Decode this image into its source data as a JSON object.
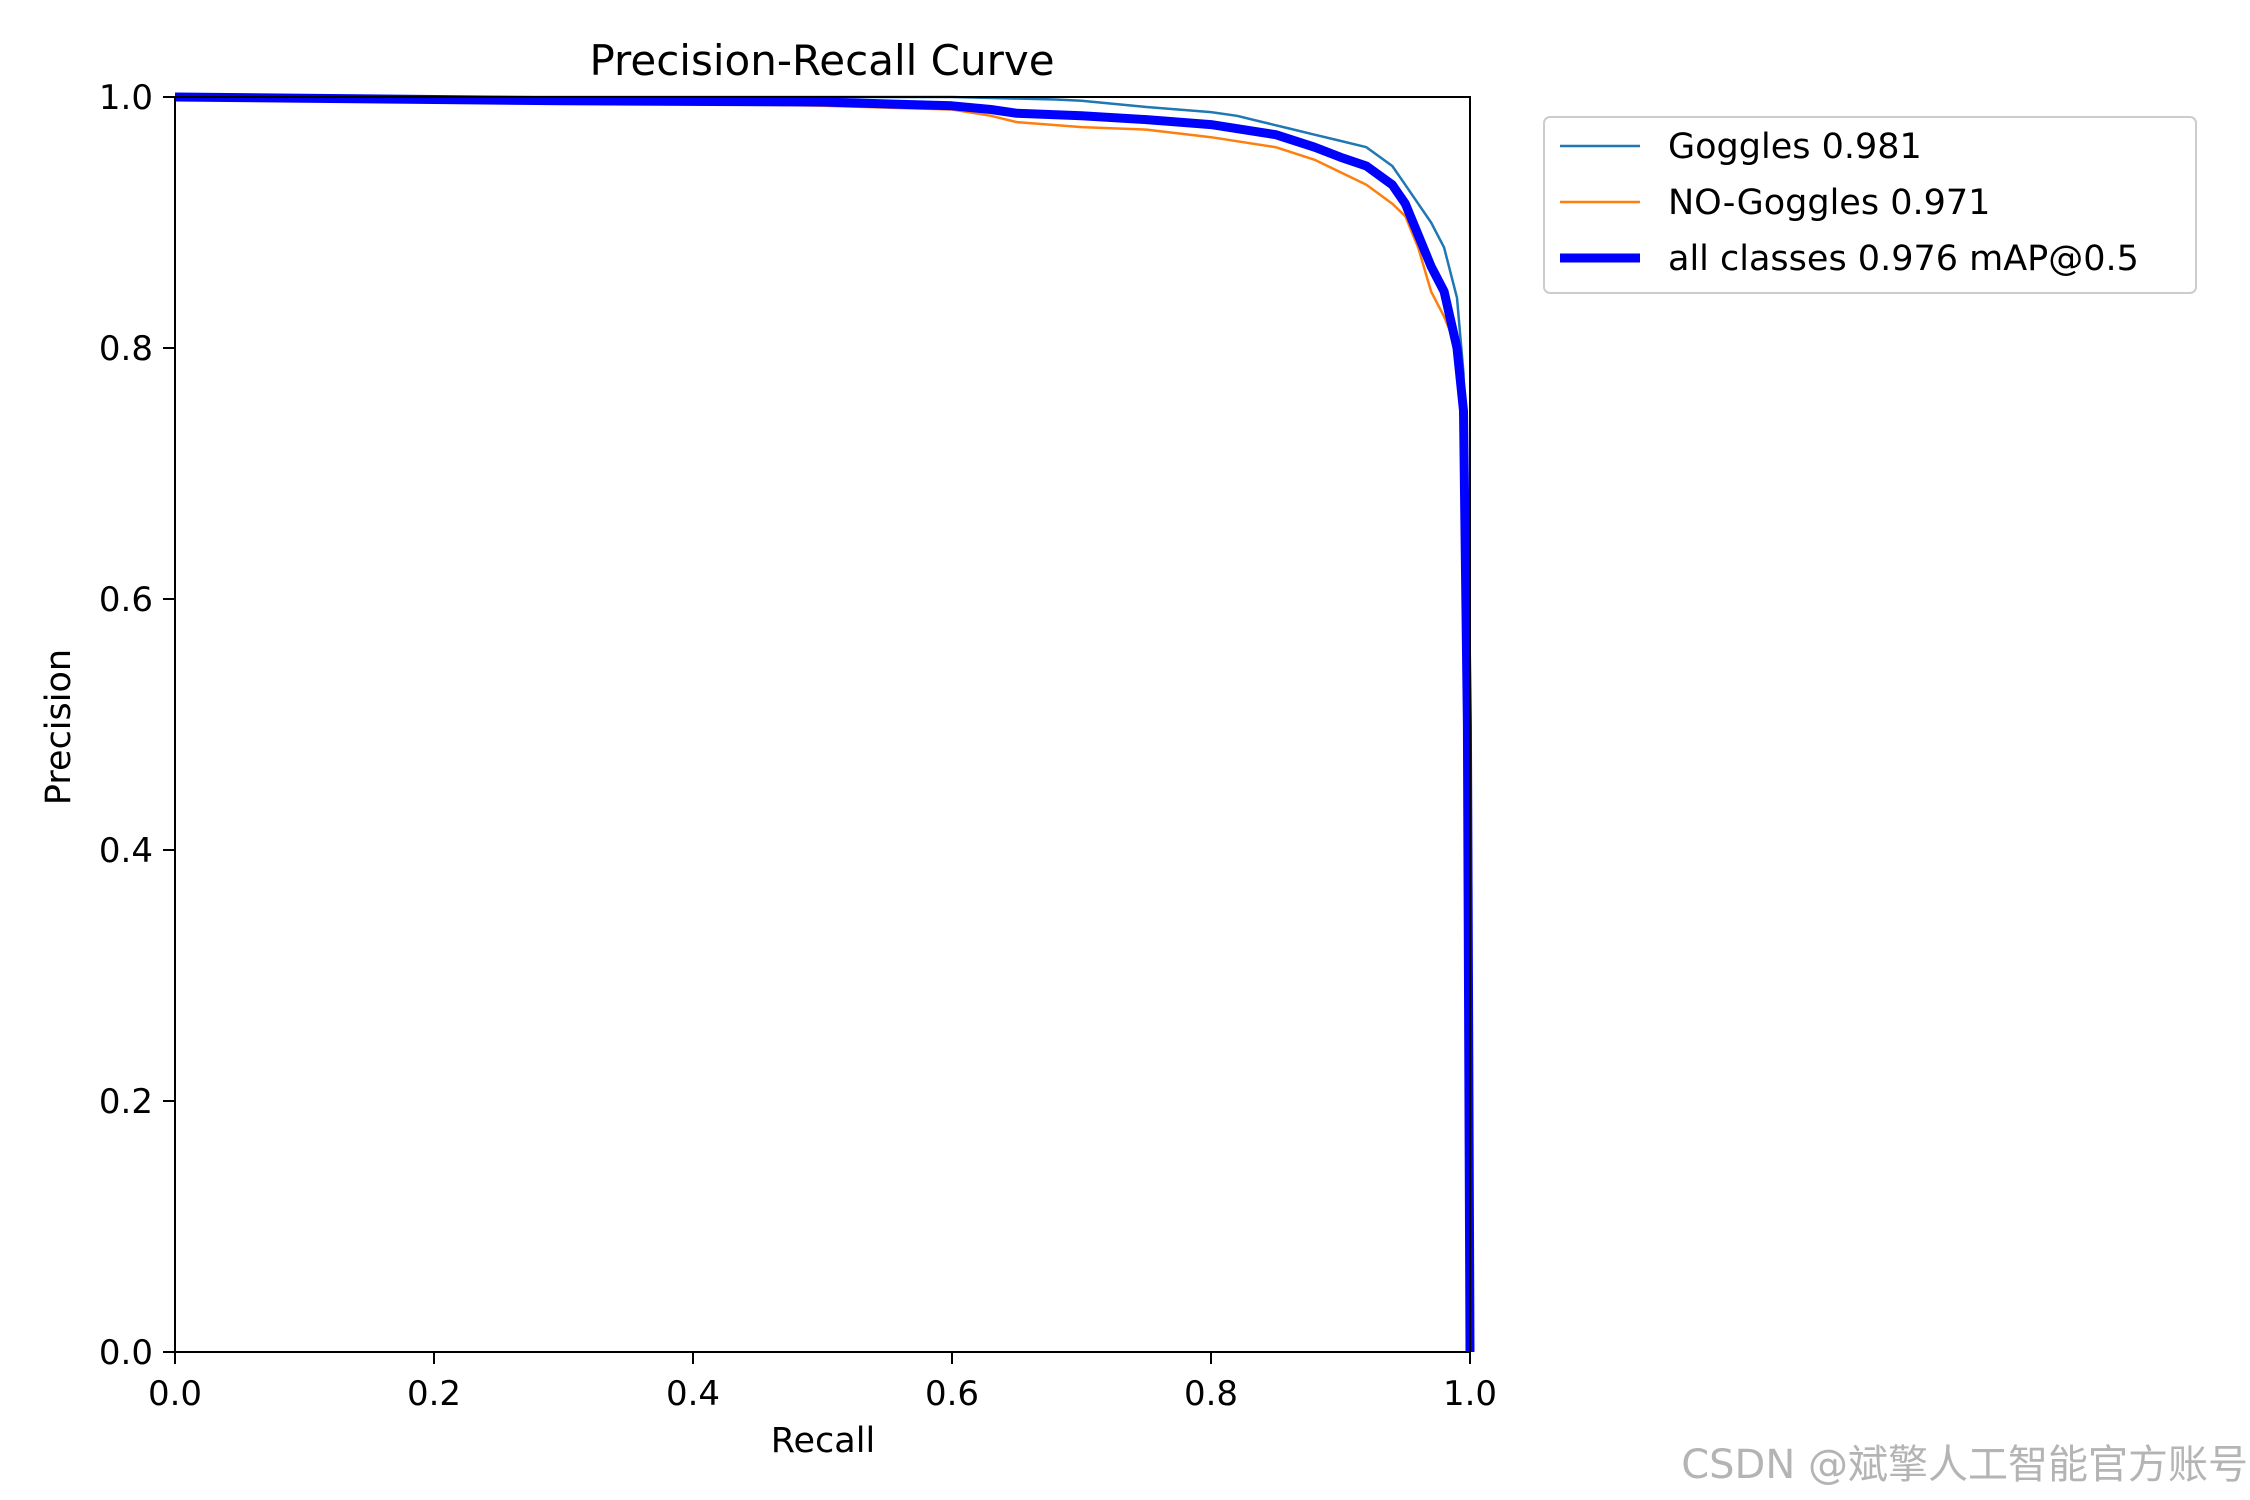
{
  "chart_data": {
    "type": "line",
    "title": "Precision-Recall Curve",
    "xlabel": "Recall",
    "ylabel": "Precision",
    "xlim": [
      0.0,
      1.0
    ],
    "ylim": [
      0.0,
      1.0
    ],
    "x_ticks": [
      "0.0",
      "0.2",
      "0.4",
      "0.6",
      "0.8",
      "1.0"
    ],
    "y_ticks": [
      "0.0",
      "0.2",
      "0.4",
      "0.6",
      "0.8",
      "1.0"
    ],
    "grid": false,
    "legend_position": "outside-top-right",
    "series": [
      {
        "name": "Goggles 0.981",
        "color": "#1f77b4",
        "width": "thin",
        "points": [
          [
            0.0,
            1.0
          ],
          [
            0.1,
            1.0
          ],
          [
            0.3,
            1.0
          ],
          [
            0.5,
            1.0
          ],
          [
            0.6,
            1.0
          ],
          [
            0.68,
            0.998
          ],
          [
            0.7,
            0.997
          ],
          [
            0.72,
            0.995
          ],
          [
            0.75,
            0.992
          ],
          [
            0.8,
            0.988
          ],
          [
            0.82,
            0.985
          ],
          [
            0.84,
            0.98
          ],
          [
            0.86,
            0.975
          ],
          [
            0.88,
            0.97
          ],
          [
            0.9,
            0.965
          ],
          [
            0.92,
            0.96
          ],
          [
            0.94,
            0.945
          ],
          [
            0.95,
            0.93
          ],
          [
            0.96,
            0.915
          ],
          [
            0.97,
            0.9
          ],
          [
            0.98,
            0.88
          ],
          [
            0.99,
            0.84
          ],
          [
            0.995,
            0.78
          ],
          [
            0.998,
            0.5
          ],
          [
            1.0,
            0.0
          ]
        ]
      },
      {
        "name": "NO-Goggles 0.971",
        "color": "#ff7f0e",
        "width": "thin",
        "points": [
          [
            0.0,
            1.0
          ],
          [
            0.1,
            0.998
          ],
          [
            0.3,
            0.997
          ],
          [
            0.5,
            0.993
          ],
          [
            0.6,
            0.99
          ],
          [
            0.63,
            0.985
          ],
          [
            0.65,
            0.98
          ],
          [
            0.7,
            0.976
          ],
          [
            0.75,
            0.974
          ],
          [
            0.8,
            0.968
          ],
          [
            0.85,
            0.96
          ],
          [
            0.88,
            0.95
          ],
          [
            0.9,
            0.94
          ],
          [
            0.92,
            0.93
          ],
          [
            0.94,
            0.915
          ],
          [
            0.95,
            0.905
          ],
          [
            0.96,
            0.88
          ],
          [
            0.97,
            0.845
          ],
          [
            0.98,
            0.825
          ],
          [
            0.99,
            0.8
          ],
          [
            0.995,
            0.75
          ],
          [
            0.998,
            0.5
          ],
          [
            1.0,
            0.0
          ]
        ]
      },
      {
        "name": "all classes 0.976 mAP@0.5",
        "color": "#0000ff",
        "width": "thick",
        "points": [
          [
            0.0,
            1.0
          ],
          [
            0.1,
            0.999
          ],
          [
            0.2,
            0.998
          ],
          [
            0.3,
            0.997
          ],
          [
            0.5,
            0.996
          ],
          [
            0.6,
            0.993
          ],
          [
            0.63,
            0.99
          ],
          [
            0.65,
            0.987
          ],
          [
            0.7,
            0.985
          ],
          [
            0.75,
            0.982
          ],
          [
            0.8,
            0.978
          ],
          [
            0.85,
            0.97
          ],
          [
            0.88,
            0.96
          ],
          [
            0.9,
            0.952
          ],
          [
            0.92,
            0.945
          ],
          [
            0.94,
            0.93
          ],
          [
            0.95,
            0.915
          ],
          [
            0.96,
            0.89
          ],
          [
            0.97,
            0.865
          ],
          [
            0.98,
            0.845
          ],
          [
            0.99,
            0.8
          ],
          [
            0.995,
            0.75
          ],
          [
            0.998,
            0.5
          ],
          [
            1.0,
            0.0
          ]
        ]
      }
    ]
  },
  "watermark": "CSDN @斌擎人工智能官方账号"
}
